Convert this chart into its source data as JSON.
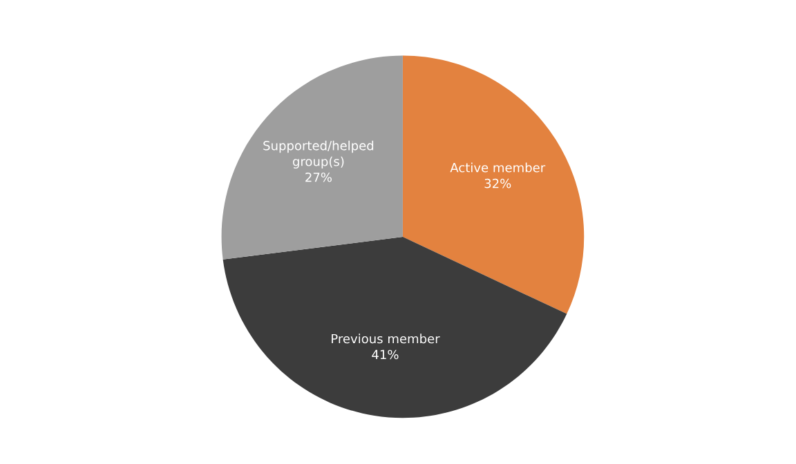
{
  "chart_data": {
    "type": "pie",
    "categories": [
      "Active member",
      "Previous member",
      "Supported/helped\ngroup(s)"
    ],
    "values": [
      32,
      41,
      27
    ],
    "value_labels": [
      "32%",
      "41%",
      "27%"
    ],
    "colors": [
      "#e3823f",
      "#3c3c3c",
      "#9e9e9e"
    ]
  }
}
